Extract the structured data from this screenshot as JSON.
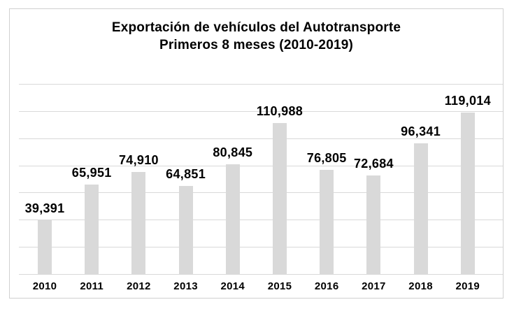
{
  "chart": {
    "title_line1": "Exportación de vehículos del Autotransporte",
    "title_line2": "Primeros 8 meses (2010-2019)"
  },
  "chart_data": {
    "type": "bar",
    "title": "Exportación de vehículos del Autotransporte",
    "subtitle": "Primeros 8 meses (2010-2019)",
    "categories": [
      "2010",
      "2011",
      "2012",
      "2013",
      "2014",
      "2015",
      "2016",
      "2017",
      "2018",
      "2019"
    ],
    "values": [
      39391,
      65951,
      74910,
      64851,
      80845,
      110988,
      76805,
      72684,
      96341,
      119014
    ],
    "value_labels": [
      "39,391",
      "65,951",
      "74,910",
      "64,851",
      "80,845",
      "110,988",
      "76,805",
      "72,684",
      "96,341",
      "119,014"
    ],
    "xlabel": "",
    "ylabel": "",
    "ylim": [
      0,
      140000
    ],
    "gridline_step": 20000,
    "grid": true,
    "legend": false,
    "y_axis_labels_visible": false,
    "colors": {
      "bar_fill": "#d9d9d9",
      "gridline": "#d9d9d9",
      "frame_border": "#d0d0d0",
      "text": "#000000",
      "background": "#ffffff"
    }
  }
}
